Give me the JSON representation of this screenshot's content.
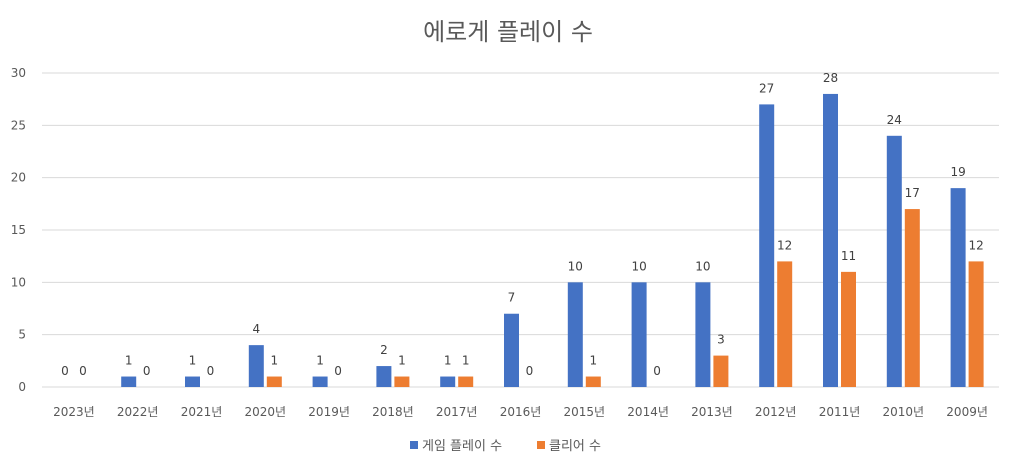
{
  "chart_data": {
    "type": "bar",
    "title": "에로게 플레이 수",
    "xlabel": "",
    "ylabel": "",
    "ylim": [
      0,
      30
    ],
    "yticks": [
      0,
      5,
      10,
      15,
      20,
      25,
      30
    ],
    "grid": true,
    "legend_position": "bottom",
    "categories": [
      "2023년",
      "2022년",
      "2021년",
      "2020년",
      "2019년",
      "2018년",
      "2017년",
      "2016년",
      "2015년",
      "2014년",
      "2013년",
      "2012년",
      "2011년",
      "2010년",
      "2009년"
    ],
    "series": [
      {
        "name": "게임 플레이 수",
        "color": "#4472C4",
        "values": [
          0,
          1,
          1,
          4,
          1,
          2,
          1,
          7,
          10,
          10,
          10,
          27,
          28,
          24,
          19
        ]
      },
      {
        "name": "클리어 수",
        "color": "#ED7D31",
        "values": [
          0,
          0,
          0,
          1,
          0,
          1,
          1,
          0,
          1,
          0,
          3,
          12,
          11,
          17,
          12
        ]
      }
    ]
  },
  "colors": {
    "grid": "#D9D9D9",
    "text": "#595959",
    "label": "#404040"
  }
}
